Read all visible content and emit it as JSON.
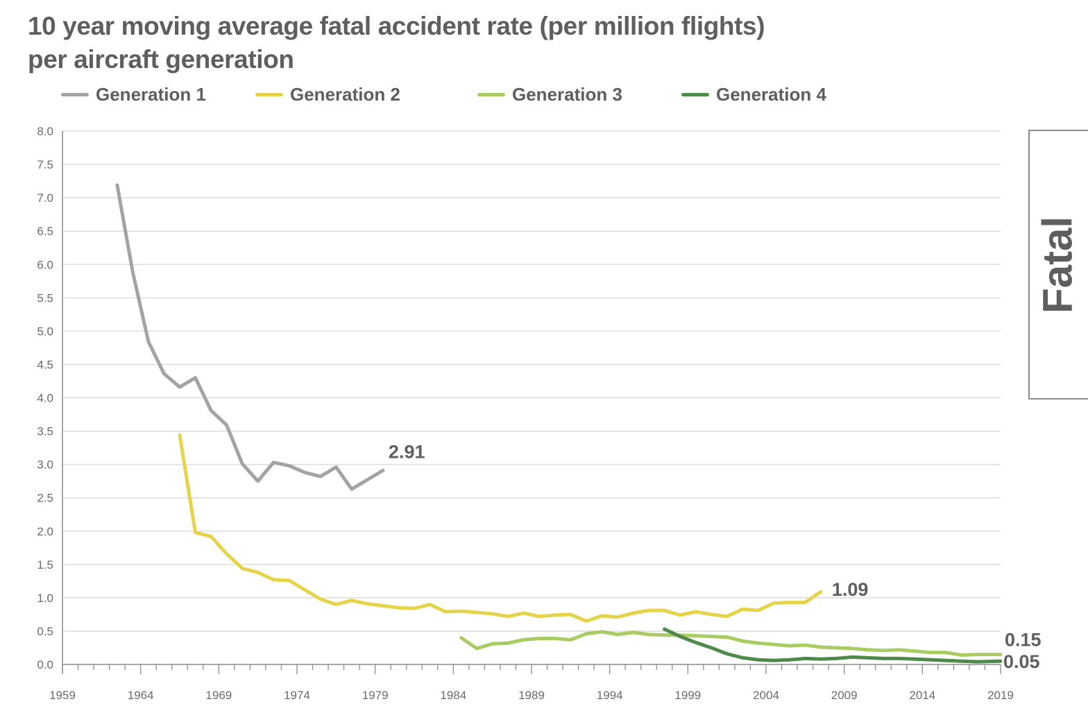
{
  "chart_data": {
    "type": "line",
    "title": "10 year moving average fatal accident rate (per million flights) per aircraft generation",
    "title_lines": [
      "10 year moving average fatal accident rate (per million flights)",
      "per aircraft generation"
    ],
    "xlabel": "",
    "ylabel": "",
    "xlim": [
      1959,
      2019
    ],
    "ylim": [
      0,
      8
    ],
    "x_ticks": [
      1959,
      1964,
      1969,
      1974,
      1979,
      1984,
      1989,
      1994,
      1999,
      2004,
      2009,
      2014,
      2019
    ],
    "y_ticks": [
      "0.0",
      "0.5",
      "1.0",
      "1.5",
      "2.0",
      "2.5",
      "3.0",
      "3.5",
      "4.0",
      "4.5",
      "5.0",
      "5.5",
      "6.0",
      "6.5",
      "7.0",
      "7.5",
      "8.0"
    ],
    "grid": true,
    "legend_position": "top",
    "series": [
      {
        "name": "Generation 1",
        "color": "#a3a3a3",
        "x": [
          1963,
          1964,
          1965,
          1966,
          1967,
          1968,
          1969,
          1970,
          1971,
          1972,
          1973,
          1974,
          1975,
          1976,
          1977,
          1978,
          1979,
          1980
        ],
        "values": [
          7.19,
          5.88,
          4.84,
          4.36,
          4.16,
          4.3,
          3.81,
          3.59,
          3.01,
          2.75,
          3.03,
          2.98,
          2.88,
          2.82,
          2.96,
          2.63,
          2.77,
          2.91
        ],
        "end_label": "2.91"
      },
      {
        "name": "Generation 2",
        "color": "#e5d34a",
        "x": [
          1967,
          1968,
          1969,
          1970,
          1971,
          1972,
          1973,
          1974,
          1975,
          1976,
          1977,
          1978,
          1979,
          1980,
          1981,
          1982,
          1983,
          1984,
          1985,
          1986,
          1987,
          1988,
          1989,
          1990,
          1991,
          1992,
          1993,
          1994,
          1995,
          1996,
          1997,
          1998,
          1999,
          2000,
          2001,
          2002,
          2003,
          2004,
          2005,
          2006,
          2007,
          2008
        ],
        "values": [
          3.44,
          1.98,
          1.92,
          1.66,
          1.44,
          1.38,
          1.27,
          1.26,
          1.12,
          0.98,
          0.9,
          0.96,
          0.91,
          0.88,
          0.85,
          0.84,
          0.9,
          0.79,
          0.8,
          0.78,
          0.76,
          0.72,
          0.77,
          0.72,
          0.74,
          0.75,
          0.65,
          0.73,
          0.71,
          0.77,
          0.81,
          0.81,
          0.74,
          0.79,
          0.75,
          0.72,
          0.83,
          0.81,
          0.92,
          0.93,
          0.93,
          1.09
        ],
        "end_label": "1.09"
      },
      {
        "name": "Generation 3",
        "color": "#a8cb62",
        "x": [
          1985,
          1986,
          1987,
          1988,
          1989,
          1990,
          1991,
          1992,
          1993,
          1994,
          1995,
          1996,
          1997,
          1998,
          1999,
          2000,
          2001,
          2002,
          2003,
          2004,
          2005,
          2006,
          2007,
          2008,
          2009,
          2010,
          2011,
          2012,
          2013,
          2014,
          2015,
          2016,
          2017,
          2018,
          2019
        ],
        "values": [
          0.4,
          0.24,
          0.31,
          0.32,
          0.37,
          0.39,
          0.39,
          0.37,
          0.46,
          0.49,
          0.45,
          0.48,
          0.45,
          0.44,
          0.44,
          0.43,
          0.42,
          0.41,
          0.35,
          0.32,
          0.3,
          0.28,
          0.29,
          0.26,
          0.25,
          0.24,
          0.22,
          0.21,
          0.22,
          0.2,
          0.18,
          0.18,
          0.14,
          0.15,
          0.15
        ],
        "end_label": "0.15"
      },
      {
        "name": "Generation 4",
        "color": "#4e8a4a",
        "x": [
          1998,
          1999,
          2000,
          2001,
          2002,
          2003,
          2004,
          2005,
          2006,
          2007,
          2008,
          2009,
          2010,
          2011,
          2012,
          2013,
          2014,
          2015,
          2016,
          2017,
          2018,
          2019
        ],
        "values": [
          0.53,
          0.42,
          0.33,
          0.25,
          0.16,
          0.1,
          0.07,
          0.06,
          0.07,
          0.09,
          0.08,
          0.09,
          0.11,
          0.1,
          0.09,
          0.09,
          0.08,
          0.07,
          0.06,
          0.05,
          0.04,
          0.05
        ],
        "end_label": "0.05"
      }
    ]
  },
  "side_panel": {
    "label": "Fatal"
  }
}
